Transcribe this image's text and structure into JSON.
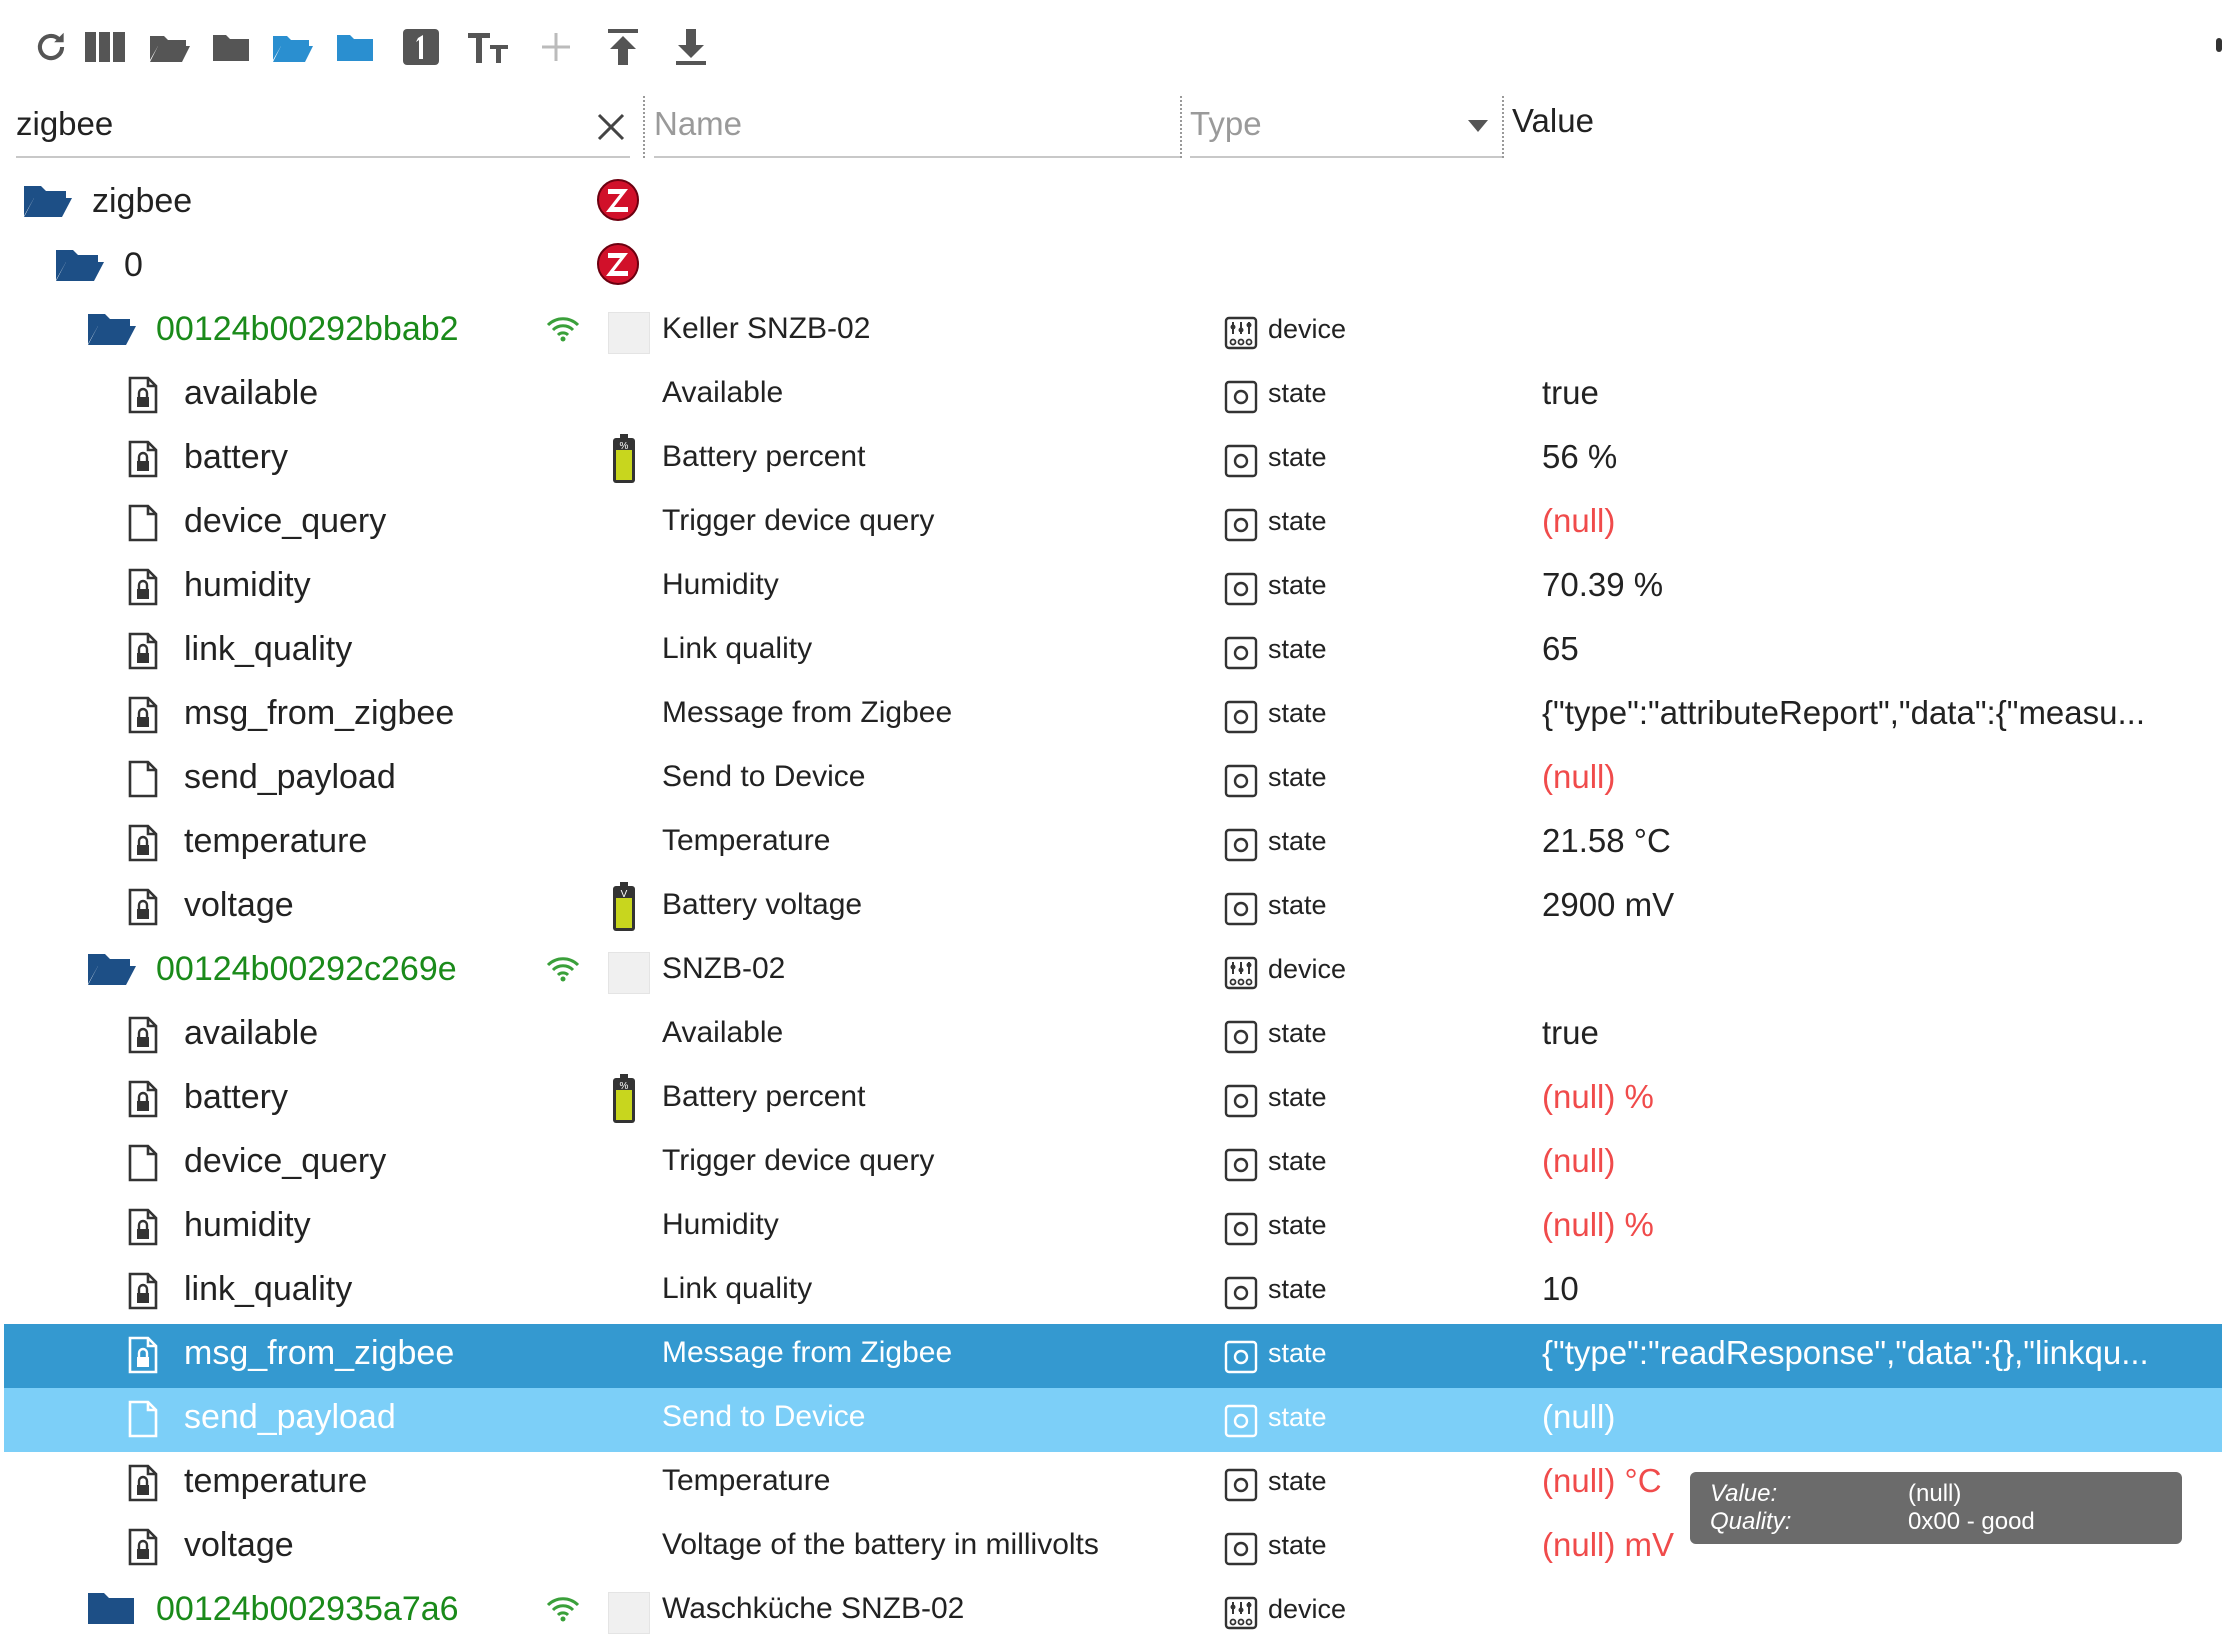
{
  "filters": {
    "id_value": "zigbee",
    "name_placeholder": "Name",
    "type_placeholder": "Type",
    "value_header": "Value"
  },
  "toolbar": {
    "icons": [
      "refresh-icon",
      "columns-icon",
      "folder-open-icon",
      "folder-closed-icon",
      "folder-open-blue-icon",
      "folder-closed-blue-icon",
      "number-one-icon",
      "text-size-icon",
      "add-icon",
      "upload-icon",
      "download-icon"
    ]
  },
  "colors": {
    "selected": "#3499d0",
    "selected_light": "#7ccff8",
    "null": "#f04b4b",
    "device_id": "#1a8a1a",
    "folder": "#1d4f86"
  },
  "tree": {
    "root": {
      "id": "zigbee"
    },
    "instance": {
      "id": "0"
    },
    "devices": [
      {
        "id": "00124b00292bbab2",
        "name": "Keller SNZB-02",
        "type": "device",
        "states": [
          {
            "id": "available",
            "name": "Available",
            "type": "state",
            "value": "true",
            "null": false,
            "locked": true,
            "battery": ""
          },
          {
            "id": "battery",
            "name": "Battery percent",
            "type": "state",
            "value": "56 %",
            "null": false,
            "locked": true,
            "battery": "%"
          },
          {
            "id": "device_query",
            "name": "Trigger device query",
            "type": "state",
            "value": "(null)",
            "null": true,
            "locked": false,
            "battery": ""
          },
          {
            "id": "humidity",
            "name": "Humidity",
            "type": "state",
            "value": "70.39 %",
            "null": false,
            "locked": true,
            "battery": ""
          },
          {
            "id": "link_quality",
            "name": "Link quality",
            "type": "state",
            "value": "65",
            "null": false,
            "locked": true,
            "battery": ""
          },
          {
            "id": "msg_from_zigbee",
            "name": "Message from Zigbee",
            "type": "state",
            "value": "{\"type\":\"attributeReport\",\"data\":{\"measu...",
            "null": false,
            "locked": true,
            "battery": ""
          },
          {
            "id": "send_payload",
            "name": "Send to Device",
            "type": "state",
            "value": "(null)",
            "null": true,
            "locked": false,
            "battery": ""
          },
          {
            "id": "temperature",
            "name": "Temperature",
            "type": "state",
            "value": "21.58 °C",
            "null": false,
            "locked": true,
            "battery": ""
          },
          {
            "id": "voltage",
            "name": "Battery voltage",
            "type": "state",
            "value": "2900 mV",
            "null": false,
            "locked": true,
            "battery": "V"
          }
        ]
      },
      {
        "id": "00124b00292c269e",
        "name": "SNZB-02",
        "type": "device",
        "states": [
          {
            "id": "available",
            "name": "Available",
            "type": "state",
            "value": "true",
            "null": false,
            "locked": true,
            "battery": ""
          },
          {
            "id": "battery",
            "name": "Battery percent",
            "type": "state",
            "value": "(null) %",
            "null": true,
            "locked": true,
            "battery": "%"
          },
          {
            "id": "device_query",
            "name": "Trigger device query",
            "type": "state",
            "value": "(null)",
            "null": true,
            "locked": false,
            "battery": ""
          },
          {
            "id": "humidity",
            "name": "Humidity",
            "type": "state",
            "value": "(null) %",
            "null": true,
            "locked": true,
            "battery": ""
          },
          {
            "id": "link_quality",
            "name": "Link quality",
            "type": "state",
            "value": "10",
            "null": false,
            "locked": true,
            "battery": ""
          },
          {
            "id": "msg_from_zigbee",
            "name": "Message from Zigbee",
            "type": "state",
            "value": "{\"type\":\"readResponse\",\"data\":{},\"linkqu...",
            "null": false,
            "locked": true,
            "battery": "",
            "selected": "primary"
          },
          {
            "id": "send_payload",
            "name": "Send to Device",
            "type": "state",
            "value": "(null)",
            "null": true,
            "locked": false,
            "battery": "",
            "selected": "secondary"
          },
          {
            "id": "temperature",
            "name": "Temperature",
            "type": "state",
            "value": "(null) °C",
            "null": true,
            "locked": true,
            "battery": ""
          },
          {
            "id": "voltage",
            "name": "Voltage of the battery in millivolts",
            "type": "state",
            "value": "(null) mV",
            "null": true,
            "locked": true,
            "battery": ""
          }
        ]
      },
      {
        "id": "00124b002935a7a6",
        "name": "Waschküche SNZB-02",
        "type": "device",
        "collapsed": true,
        "states": []
      }
    ]
  },
  "tooltip": {
    "value_label": "Value:",
    "value": "(null)",
    "quality_label": "Quality:",
    "quality": "0x00 - good"
  }
}
